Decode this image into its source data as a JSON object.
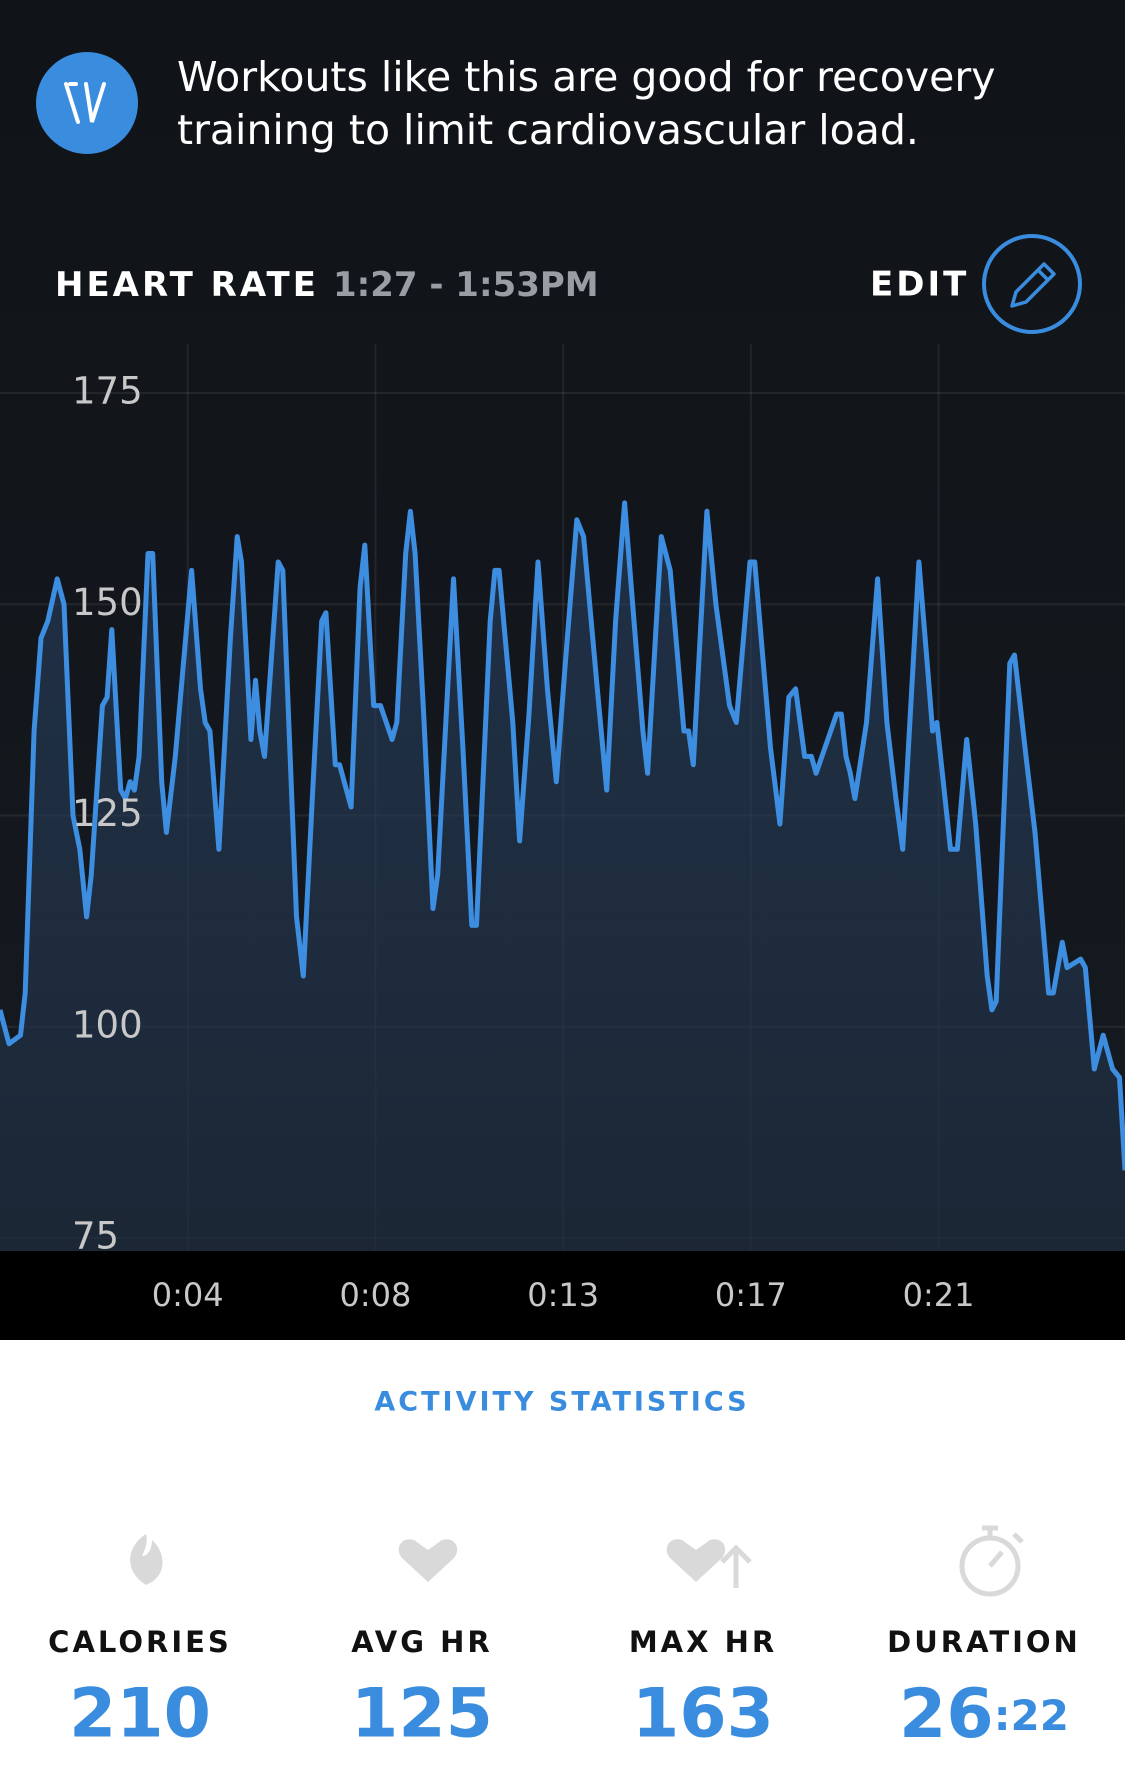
{
  "header": {
    "message_line_1": "Workouts like this are good for recovery",
    "message_line_2": "training to limit cardiovascular load."
  },
  "chart_header": {
    "title": "HEART RATE",
    "time_range": "1:27 - 1:53PM",
    "edit": "EDIT"
  },
  "chart_data": {
    "type": "line",
    "color": "#3d8ee0",
    "grid": true,
    "xlim": [
      0,
      26.37
    ],
    "ylim": [
      75,
      175
    ],
    "yticks": [
      75,
      100,
      125,
      150,
      175
    ],
    "xticks": [
      {
        "value": 4.4,
        "label": "0:04"
      },
      {
        "value": 8.8,
        "label": "0:08"
      },
      {
        "value": 13.2,
        "label": "0:13"
      },
      {
        "value": 17.6,
        "label": "0:17"
      },
      {
        "value": 22.0,
        "label": "0:21"
      }
    ],
    "x": [
      0,
      0.21,
      0.48,
      0.59,
      0.8,
      0.96,
      1.12,
      1.34,
      1.5,
      1.71,
      1.87,
      2.03,
      2.14,
      2.4,
      2.51,
      2.62,
      2.83,
      2.94,
      3.05,
      3.15,
      3.26,
      3.47,
      3.58,
      3.79,
      3.9,
      4.11,
      4.49,
      4.7,
      4.81,
      4.92,
      5.13,
      5.4,
      5.56,
      5.66,
      5.88,
      5.99,
      6.09,
      6.2,
      6.52,
      6.63,
      6.84,
      6.95,
      7.11,
      7.32,
      7.54,
      7.64,
      7.86,
      7.96,
      8.23,
      8.44,
      8.55,
      8.76,
      8.92,
      9.19,
      9.3,
      9.51,
      9.62,
      9.73,
      9.94,
      10.15,
      10.26,
      10.63,
      10.85,
      11.06,
      11.17,
      11.49,
      11.6,
      11.7,
      12.02,
      12.18,
      12.4,
      12.61,
      12.83,
      13.04,
      13.25,
      13.52,
      13.68,
      14.0,
      14.22,
      14.43,
      14.64,
      14.86,
      15.07,
      15.18,
      15.5,
      15.71,
      16.03,
      16.14,
      16.25,
      16.57,
      16.78,
      17.1,
      17.26,
      17.58,
      17.69,
      18.06,
      18.28,
      18.49,
      18.65,
      18.86,
      19.02,
      19.13,
      19.61,
      19.72,
      19.83,
      19.93,
      20.04,
      20.31,
      20.57,
      20.79,
      21.0,
      21.16,
      21.54,
      21.75,
      21.86,
      21.96,
      22.28,
      22.44,
      22.66,
      22.87,
      23.14,
      23.25,
      23.35,
      23.67,
      23.78,
      24.05,
      24.26,
      24.58,
      24.69,
      24.9,
      25.01,
      25.33,
      25.44,
      25.65,
      25.86,
      26.08,
      26.24,
      26.37
    ],
    "values": [
      102,
      98,
      99,
      104,
      135,
      146,
      148,
      153,
      150,
      125,
      121,
      113,
      118,
      138,
      139,
      147,
      128,
      127,
      129,
      128,
      132,
      156,
      156,
      129,
      123,
      132,
      154,
      140,
      136,
      135,
      121,
      146,
      158,
      155,
      134,
      141,
      135,
      132,
      155,
      154,
      127,
      113,
      106,
      127,
      148,
      149,
      131,
      131,
      126,
      152,
      157,
      138,
      138,
      134,
      136,
      156,
      161,
      156,
      136,
      114,
      118,
      153,
      133,
      112,
      112,
      148,
      154,
      154,
      136,
      122,
      137,
      155,
      140,
      129,
      143,
      160,
      158,
      140,
      128,
      148,
      162,
      148,
      135,
      130,
      158,
      154,
      135,
      135,
      131,
      161,
      150,
      138,
      136,
      155,
      155,
      133,
      124,
      139,
      140,
      132,
      132,
      130,
      137,
      137,
      132,
      130,
      127,
      136,
      153,
      136,
      127,
      121,
      155,
      142,
      135,
      136,
      121,
      121,
      134,
      124,
      106,
      102,
      103,
      143,
      144,
      132,
      123,
      104,
      104,
      110,
      107,
      108,
      107,
      95,
      99,
      95,
      94,
      83
    ]
  },
  "section_title": "ACTIVITY STATISTICS",
  "stats": [
    {
      "label": "CALORIES",
      "value": 210
    },
    {
      "label": "AVG HR",
      "value": 125
    },
    {
      "label": "MAX HR",
      "value": 163
    },
    {
      "label": "DURATION",
      "value_main": "26",
      "value_suffix": ":22"
    }
  ]
}
